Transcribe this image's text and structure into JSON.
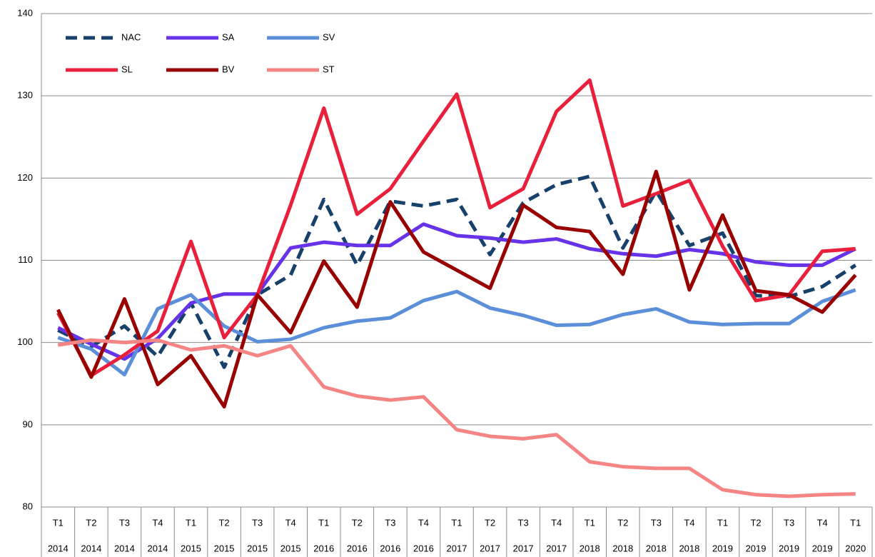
{
  "chart_data": {
    "type": "line",
    "categories": [
      [
        "T1",
        "2014"
      ],
      [
        "T2",
        "2014"
      ],
      [
        "T3",
        "2014"
      ],
      [
        "T4",
        "2014"
      ],
      [
        "T1",
        "2015"
      ],
      [
        "T2",
        "2015"
      ],
      [
        "T3",
        "2015"
      ],
      [
        "T4",
        "2015"
      ],
      [
        "T1",
        "2016"
      ],
      [
        "T2",
        "2016"
      ],
      [
        "T3",
        "2016"
      ],
      [
        "T4",
        "2016"
      ],
      [
        "T1",
        "2017"
      ],
      [
        "T2",
        "2017"
      ],
      [
        "T3",
        "2017"
      ],
      [
        "T4",
        "2017"
      ],
      [
        "T1",
        "2018"
      ],
      [
        "T2",
        "2018"
      ],
      [
        "T3",
        "2018"
      ],
      [
        "T4",
        "2018"
      ],
      [
        "T1",
        "2019"
      ],
      [
        "T2",
        "2019"
      ],
      [
        "T3",
        "2019"
      ],
      [
        "T4",
        "2019"
      ],
      [
        "T1",
        "2020"
      ]
    ],
    "series": [
      {
        "name": "NAC",
        "color": "#17406a",
        "dashed": true,
        "values": [
          101.5,
          99.5,
          102,
          98.3,
          104.8,
          97,
          105.8,
          108.2,
          117.4,
          109.4,
          117.2,
          116.6,
          117.4,
          110.7,
          117,
          119.2,
          120.2,
          111.5,
          118.4,
          111.8,
          113.3,
          105.7,
          105.6,
          106.8,
          109.4
        ]
      },
      {
        "name": "SA",
        "color": "#6633e8",
        "values": [
          101.8,
          99.8,
          98,
          100.5,
          104.8,
          105.9,
          105.9,
          111.5,
          112.2,
          111.8,
          111.8,
          114.4,
          113,
          112.7,
          112.2,
          112.6,
          111.4,
          110.8,
          110.5,
          111.3,
          110.8,
          109.8,
          109.4,
          109.4,
          111.4
        ]
      },
      {
        "name": "SV",
        "color": "#5b8fd9",
        "values": [
          100.6,
          99.2,
          96.1,
          104.1,
          105.8,
          102,
          100.1,
          100.4,
          101.8,
          102.6,
          103,
          105.1,
          106.2,
          104.2,
          103.3,
          102.1,
          102.2,
          103.4,
          104.1,
          102.5,
          102.2,
          102.3,
          102.3,
          105,
          106.4
        ]
      },
      {
        "name": "SL",
        "color": "#e8203c",
        "values": [
          103.6,
          96,
          98.5,
          101.4,
          112.3,
          100.6,
          105.8,
          116.7,
          128.5,
          115.6,
          118.7,
          124.5,
          130.2,
          116.4,
          118.7,
          128.1,
          131.9,
          116.6,
          118.1,
          119.7,
          111.7,
          105.1,
          105.8,
          111.1,
          111.4
        ]
      },
      {
        "name": "BV",
        "color": "#990000",
        "values": [
          104,
          95.8,
          105.3,
          94.9,
          98.4,
          92.2,
          105.8,
          101.2,
          109.9,
          104.3,
          117.1,
          111,
          108.8,
          106.6,
          116.7,
          114,
          113.5,
          108.3,
          120.8,
          106.4,
          115.5,
          106.3,
          105.8,
          103.7,
          108.2
        ]
      },
      {
        "name": "ST",
        "color": "#f58585",
        "values": [
          99.7,
          100.3,
          100,
          100.3,
          99.1,
          99.6,
          98.4,
          99.6,
          94.6,
          93.5,
          93,
          93.4,
          89.4,
          88.6,
          88.3,
          88.8,
          85.5,
          84.9,
          84.7,
          84.7,
          82.1,
          81.5,
          81.3,
          81.5,
          81.6
        ]
      }
    ],
    "ylim": [
      80,
      140
    ],
    "yticks": [
      80,
      90,
      100,
      110,
      120,
      130,
      140
    ],
    "grid": true,
    "legend": "top-left"
  }
}
